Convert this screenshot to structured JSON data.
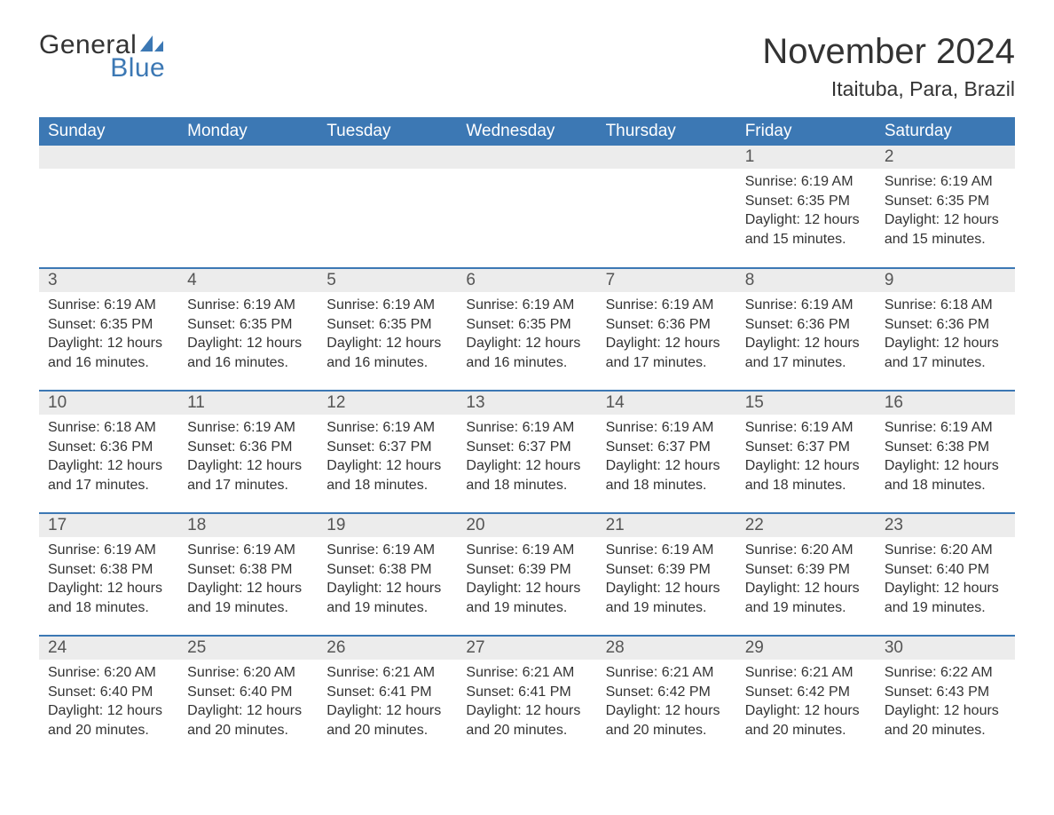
{
  "logo": {
    "text1": "General",
    "text2": "Blue",
    "general_color": "#333333",
    "blue_color": "#3c78b4",
    "sail_color": "#3c78b4"
  },
  "header": {
    "month_title": "November 2024",
    "location": "Itaituba, Para, Brazil",
    "title_fontsize": 40,
    "location_fontsize": 23
  },
  "calendar": {
    "type": "table",
    "header_bg": "#3c78b4",
    "header_fg": "#ffffff",
    "daynum_bg": "#ececec",
    "row_divider_color": "#3c78b4",
    "columns": [
      "Sunday",
      "Monday",
      "Tuesday",
      "Wednesday",
      "Thursday",
      "Friday",
      "Saturday"
    ],
    "weeks": [
      [
        null,
        null,
        null,
        null,
        null,
        {
          "n": "1",
          "sunrise": "Sunrise: 6:19 AM",
          "sunset": "Sunset: 6:35 PM",
          "daylight": "Daylight: 12 hours and 15 minutes."
        },
        {
          "n": "2",
          "sunrise": "Sunrise: 6:19 AM",
          "sunset": "Sunset: 6:35 PM",
          "daylight": "Daylight: 12 hours and 15 minutes."
        }
      ],
      [
        {
          "n": "3",
          "sunrise": "Sunrise: 6:19 AM",
          "sunset": "Sunset: 6:35 PM",
          "daylight": "Daylight: 12 hours and 16 minutes."
        },
        {
          "n": "4",
          "sunrise": "Sunrise: 6:19 AM",
          "sunset": "Sunset: 6:35 PM",
          "daylight": "Daylight: 12 hours and 16 minutes."
        },
        {
          "n": "5",
          "sunrise": "Sunrise: 6:19 AM",
          "sunset": "Sunset: 6:35 PM",
          "daylight": "Daylight: 12 hours and 16 minutes."
        },
        {
          "n": "6",
          "sunrise": "Sunrise: 6:19 AM",
          "sunset": "Sunset: 6:35 PM",
          "daylight": "Daylight: 12 hours and 16 minutes."
        },
        {
          "n": "7",
          "sunrise": "Sunrise: 6:19 AM",
          "sunset": "Sunset: 6:36 PM",
          "daylight": "Daylight: 12 hours and 17 minutes."
        },
        {
          "n": "8",
          "sunrise": "Sunrise: 6:19 AM",
          "sunset": "Sunset: 6:36 PM",
          "daylight": "Daylight: 12 hours and 17 minutes."
        },
        {
          "n": "9",
          "sunrise": "Sunrise: 6:18 AM",
          "sunset": "Sunset: 6:36 PM",
          "daylight": "Daylight: 12 hours and 17 minutes."
        }
      ],
      [
        {
          "n": "10",
          "sunrise": "Sunrise: 6:18 AM",
          "sunset": "Sunset: 6:36 PM",
          "daylight": "Daylight: 12 hours and 17 minutes."
        },
        {
          "n": "11",
          "sunrise": "Sunrise: 6:19 AM",
          "sunset": "Sunset: 6:36 PM",
          "daylight": "Daylight: 12 hours and 17 minutes."
        },
        {
          "n": "12",
          "sunrise": "Sunrise: 6:19 AM",
          "sunset": "Sunset: 6:37 PM",
          "daylight": "Daylight: 12 hours and 18 minutes."
        },
        {
          "n": "13",
          "sunrise": "Sunrise: 6:19 AM",
          "sunset": "Sunset: 6:37 PM",
          "daylight": "Daylight: 12 hours and 18 minutes."
        },
        {
          "n": "14",
          "sunrise": "Sunrise: 6:19 AM",
          "sunset": "Sunset: 6:37 PM",
          "daylight": "Daylight: 12 hours and 18 minutes."
        },
        {
          "n": "15",
          "sunrise": "Sunrise: 6:19 AM",
          "sunset": "Sunset: 6:37 PM",
          "daylight": "Daylight: 12 hours and 18 minutes."
        },
        {
          "n": "16",
          "sunrise": "Sunrise: 6:19 AM",
          "sunset": "Sunset: 6:38 PM",
          "daylight": "Daylight: 12 hours and 18 minutes."
        }
      ],
      [
        {
          "n": "17",
          "sunrise": "Sunrise: 6:19 AM",
          "sunset": "Sunset: 6:38 PM",
          "daylight": "Daylight: 12 hours and 18 minutes."
        },
        {
          "n": "18",
          "sunrise": "Sunrise: 6:19 AM",
          "sunset": "Sunset: 6:38 PM",
          "daylight": "Daylight: 12 hours and 19 minutes."
        },
        {
          "n": "19",
          "sunrise": "Sunrise: 6:19 AM",
          "sunset": "Sunset: 6:38 PM",
          "daylight": "Daylight: 12 hours and 19 minutes."
        },
        {
          "n": "20",
          "sunrise": "Sunrise: 6:19 AM",
          "sunset": "Sunset: 6:39 PM",
          "daylight": "Daylight: 12 hours and 19 minutes."
        },
        {
          "n": "21",
          "sunrise": "Sunrise: 6:19 AM",
          "sunset": "Sunset: 6:39 PM",
          "daylight": "Daylight: 12 hours and 19 minutes."
        },
        {
          "n": "22",
          "sunrise": "Sunrise: 6:20 AM",
          "sunset": "Sunset: 6:39 PM",
          "daylight": "Daylight: 12 hours and 19 minutes."
        },
        {
          "n": "23",
          "sunrise": "Sunrise: 6:20 AM",
          "sunset": "Sunset: 6:40 PM",
          "daylight": "Daylight: 12 hours and 19 minutes."
        }
      ],
      [
        {
          "n": "24",
          "sunrise": "Sunrise: 6:20 AM",
          "sunset": "Sunset: 6:40 PM",
          "daylight": "Daylight: 12 hours and 20 minutes."
        },
        {
          "n": "25",
          "sunrise": "Sunrise: 6:20 AM",
          "sunset": "Sunset: 6:40 PM",
          "daylight": "Daylight: 12 hours and 20 minutes."
        },
        {
          "n": "26",
          "sunrise": "Sunrise: 6:21 AM",
          "sunset": "Sunset: 6:41 PM",
          "daylight": "Daylight: 12 hours and 20 minutes."
        },
        {
          "n": "27",
          "sunrise": "Sunrise: 6:21 AM",
          "sunset": "Sunset: 6:41 PM",
          "daylight": "Daylight: 12 hours and 20 minutes."
        },
        {
          "n": "28",
          "sunrise": "Sunrise: 6:21 AM",
          "sunset": "Sunset: 6:42 PM",
          "daylight": "Daylight: 12 hours and 20 minutes."
        },
        {
          "n": "29",
          "sunrise": "Sunrise: 6:21 AM",
          "sunset": "Sunset: 6:42 PM",
          "daylight": "Daylight: 12 hours and 20 minutes."
        },
        {
          "n": "30",
          "sunrise": "Sunrise: 6:22 AM",
          "sunset": "Sunset: 6:43 PM",
          "daylight": "Daylight: 12 hours and 20 minutes."
        }
      ]
    ]
  }
}
